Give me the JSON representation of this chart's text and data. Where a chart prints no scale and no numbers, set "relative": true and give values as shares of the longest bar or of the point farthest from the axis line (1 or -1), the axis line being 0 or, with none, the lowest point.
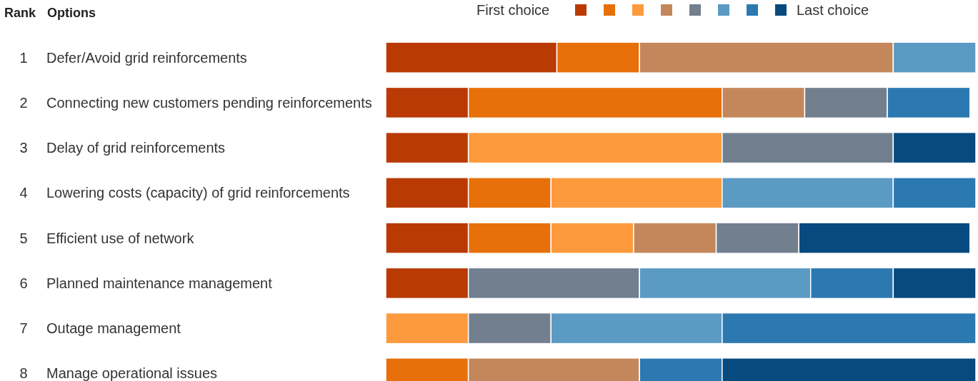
{
  "chart_data": {
    "type": "bar",
    "orientation": "horizontal",
    "stacked": true,
    "relative": true,
    "title": "Rank",
    "subtitle": "Options",
    "legend": "top right",
    "tick_labels": "y",
    "categories": [
      "Defer/Avoid grid reinforcements",
      "Connecting new customers pending reinforcements",
      "Delay of grid reinforcements",
      "Lowering costs (capacity) of grid reinforcements",
      "Efficient use of network",
      "Planned maintenance management",
      "Outage management",
      "Manage operational issues"
    ],
    "annotations": [
      "1",
      "2",
      "3",
      "4",
      "5",
      "6",
      "7",
      "8"
    ],
    "series": [
      {
        "name": "First choice",
        "color": "#b93a05",
        "values": [
          0.29,
          0.14,
          0.14,
          0.14,
          0.14,
          0.14,
          null,
          null
        ]
      },
      {
        "color": "#e8700a",
        "values": [
          0.14,
          0.43,
          null,
          0.14,
          0.14,
          null,
          null,
          0.14
        ]
      },
      {
        "color": "#fd9a3e",
        "values": [
          null,
          null,
          0.43,
          0.29,
          0.14,
          null,
          0.14,
          null
        ]
      },
      {
        "color": "#c4875c",
        "values": [
          0.43,
          0.14,
          null,
          null,
          0.14,
          null,
          null,
          0.29
        ]
      },
      {
        "color": "#717f8f",
        "values": [
          null,
          0.14,
          0.29,
          null,
          0.14,
          0.29,
          0.14,
          null
        ]
      },
      {
        "color": "#5b9ac3",
        "values": [
          0.14,
          null,
          null,
          0.29,
          null,
          0.29,
          0.29,
          null
        ]
      },
      {
        "color": "#2c78b0",
        "values": [
          null,
          0.14,
          null,
          0.14,
          null,
          0.14,
          0.43,
          0.14
        ]
      },
      {
        "name": "Last choice",
        "color": "#064a80",
        "values": [
          null,
          null,
          0.14,
          null,
          0.29,
          0.14,
          null,
          0.43
        ]
      }
    ]
  }
}
